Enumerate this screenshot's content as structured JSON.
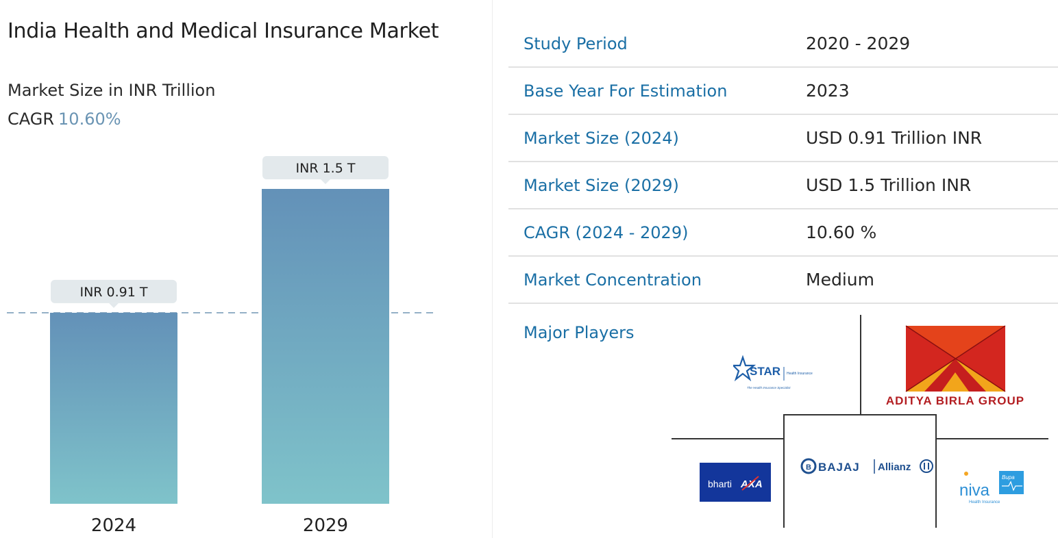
{
  "left": {
    "title": "India Health and Medical Insurance Market",
    "subtitle": "Market Size in INR Trillion",
    "cagr_label": "CAGR",
    "cagr_value": "10.60%"
  },
  "chart_data": {
    "type": "bar",
    "categories": [
      "2024",
      "2029"
    ],
    "values": [
      0.91,
      1.5
    ],
    "data_labels": [
      "INR 0.91 T",
      "INR 1.5 T"
    ],
    "title": "India Health and Medical Insurance Market",
    "ylabel": "Market Size in INR Trillion",
    "ylim": [
      0,
      1.5
    ],
    "grid": false,
    "reference_line": 0.91,
    "colors": {
      "bar_top": "#6391b8",
      "bar_bottom": "#7fc3ca",
      "label_bg": "#e3e9ec",
      "ref_line": "#7c9fba"
    }
  },
  "stats": [
    {
      "key": "Study Period",
      "value": "2020 - 2029"
    },
    {
      "key": "Base Year For Estimation",
      "value": "2023"
    },
    {
      "key": "Market Size (2024)",
      "value": "USD 0.91 Trillion INR"
    },
    {
      "key": "Market Size (2029)",
      "value": "USD 1.5 Trillion INR"
    },
    {
      "key": "CAGR (2024 - 2029)",
      "value": "10.60 %"
    },
    {
      "key": "Market Concentration",
      "value": "Medium"
    }
  ],
  "players": {
    "label": "Major Players",
    "logos": [
      {
        "name": "star-health-logo",
        "text": "STAR",
        "sub": "Health Insurance",
        "tag": "The Health Insurance Specialist"
      },
      {
        "name": "aditya-birla-logo",
        "text": "ADITYA BIRLA GROUP"
      },
      {
        "name": "bharti-axa-logo",
        "text": "bharti",
        "mark": "AXA"
      },
      {
        "name": "bajaj-allianz-logo",
        "text": "BAJAJ",
        "partner": "Allianz"
      },
      {
        "name": "niva-bupa-logo",
        "text": "niva",
        "badge": "Bupa",
        "sub": "Health Insurance"
      }
    ]
  }
}
